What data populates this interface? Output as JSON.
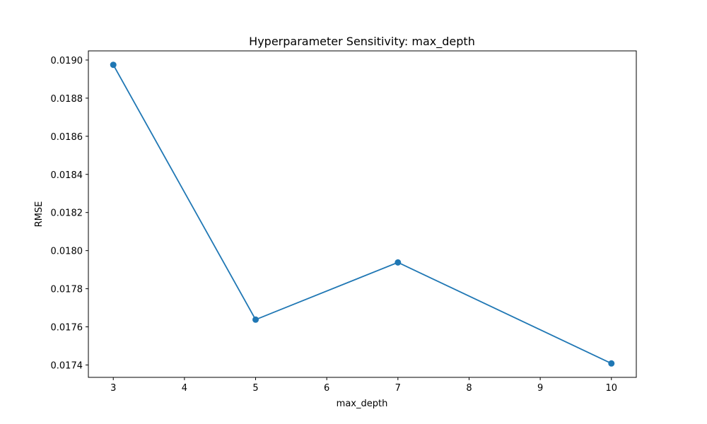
{
  "chart_data": {
    "type": "line",
    "title": "Hyperparameter Sensitivity: max_depth",
    "xlabel": "max_depth",
    "ylabel": "RMSE",
    "series": [
      {
        "x": [
          3,
          5,
          7,
          10
        ],
        "y": [
          0.018975,
          0.017638,
          0.017938,
          0.017408
        ],
        "color": "#1f77b4",
        "marker": "circle"
      }
    ],
    "xlim": [
      2.65,
      10.35
    ],
    "ylim": [
      0.017335,
      0.019048
    ],
    "xticks": [
      3,
      4,
      5,
      6,
      7,
      8,
      9,
      10
    ],
    "xtick_labels": [
      "3",
      "4",
      "5",
      "6",
      "7",
      "8",
      "9",
      "10"
    ],
    "yticks": [
      0.0174,
      0.0176,
      0.0178,
      0.018,
      0.0182,
      0.0184,
      0.0186,
      0.0188,
      0.019
    ],
    "ytick_labels": [
      "0.0174",
      "0.0176",
      "0.0178",
      "0.0180",
      "0.0182",
      "0.0184",
      "0.0186",
      "0.0188",
      "0.0190"
    ],
    "grid": false,
    "legend": false
  }
}
